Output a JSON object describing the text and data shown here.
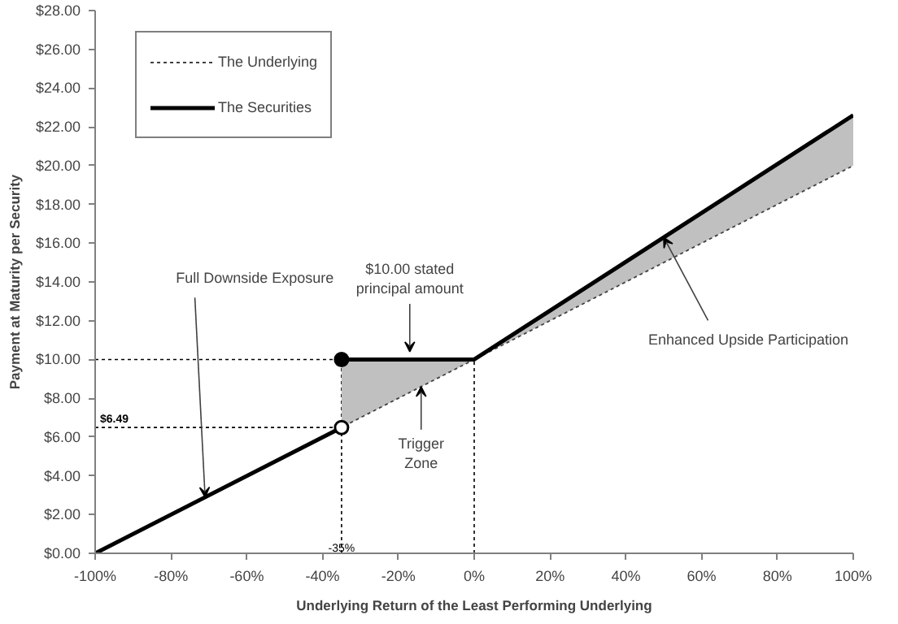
{
  "chart_data": {
    "type": "line",
    "xlabel": "Underlying Return of the Least Performing Underlying",
    "ylabel": "Payment at Maturity per Security",
    "xlim": [
      -100,
      100
    ],
    "ylim": [
      0,
      28
    ],
    "xticks": [
      {
        "value": -100,
        "label": "-100%"
      },
      {
        "value": -80,
        "label": "-80%"
      },
      {
        "value": -60,
        "label": "-60%"
      },
      {
        "value": -40,
        "label": "-40%"
      },
      {
        "value": -20,
        "label": "-20%"
      },
      {
        "value": 0,
        "label": "0%"
      },
      {
        "value": 20,
        "label": "20%"
      },
      {
        "value": 40,
        "label": "40%"
      },
      {
        "value": 60,
        "label": "60%"
      },
      {
        "value": 80,
        "label": "80%"
      },
      {
        "value": 100,
        "label": "100%"
      }
    ],
    "yticks": [
      {
        "value": 0,
        "label": "$0.00"
      },
      {
        "value": 2,
        "label": "$2.00"
      },
      {
        "value": 4,
        "label": "$4.00"
      },
      {
        "value": 6,
        "label": "$6.00"
      },
      {
        "value": 8,
        "label": "$8.00"
      },
      {
        "value": 10,
        "label": "$10.00"
      },
      {
        "value": 12,
        "label": "$12.00"
      },
      {
        "value": 14,
        "label": "$14.00"
      },
      {
        "value": 16,
        "label": "$16.00"
      },
      {
        "value": 18,
        "label": "$18.00"
      },
      {
        "value": 20,
        "label": "$20.00"
      },
      {
        "value": 22,
        "label": "$22.00"
      },
      {
        "value": 24,
        "label": "$24.00"
      },
      {
        "value": 26,
        "label": "$26.00"
      },
      {
        "value": 28,
        "label": "$28.00"
      }
    ],
    "grid": false,
    "legend": "top left",
    "marker": "none",
    "series": [
      {
        "name": "The Underlying",
        "color": "#404040",
        "line_style": "dotted",
        "x": [
          -100,
          100
        ],
        "values": [
          0,
          20
        ]
      },
      {
        "name": "The Securities",
        "color": "#000000",
        "line_style": "solid",
        "x": [
          -100,
          -35,
          null,
          -35,
          0,
          100
        ],
        "values": [
          0,
          6.49,
          null,
          10,
          10,
          22.6
        ],
        "lower": [
          null,
          null,
          null,
          6.49,
          10,
          20
        ],
        "upper": [
          null,
          null,
          null,
          10,
          10,
          22.6
        ]
      },
      {
        "type": "scatter",
        "marker": "circle",
        "x": [
          -35,
          -35
        ],
        "values": [
          6.49,
          10
        ],
        "colors": [
          "#ffffff",
          "#000000"
        ]
      }
    ],
    "ref_lines": [
      {
        "axis": "y",
        "value": 10,
        "label": null,
        "line_style": "dotted"
      },
      {
        "axis": "y",
        "value": 6.49,
        "label": "$6.49",
        "line_style": "dotted"
      },
      {
        "axis": "x",
        "value": -35,
        "label": "-35%",
        "line_style": "dotted"
      },
      {
        "axis": "x",
        "value": 0,
        "label": null,
        "line_style": "dotted"
      }
    ],
    "annotations": [
      {
        "text": "Full Downside Exposure",
        "x": -71,
        "y": 2.9
      },
      {
        "text": "$10.00 stated\nprincipal amount",
        "x": -17,
        "y": 10.4
      },
      {
        "text": "Trigger\nZone",
        "x": -14,
        "y": 8.6
      },
      {
        "text": "Enhanced Upside Participation",
        "x": 50,
        "y": 16.3
      }
    ]
  }
}
